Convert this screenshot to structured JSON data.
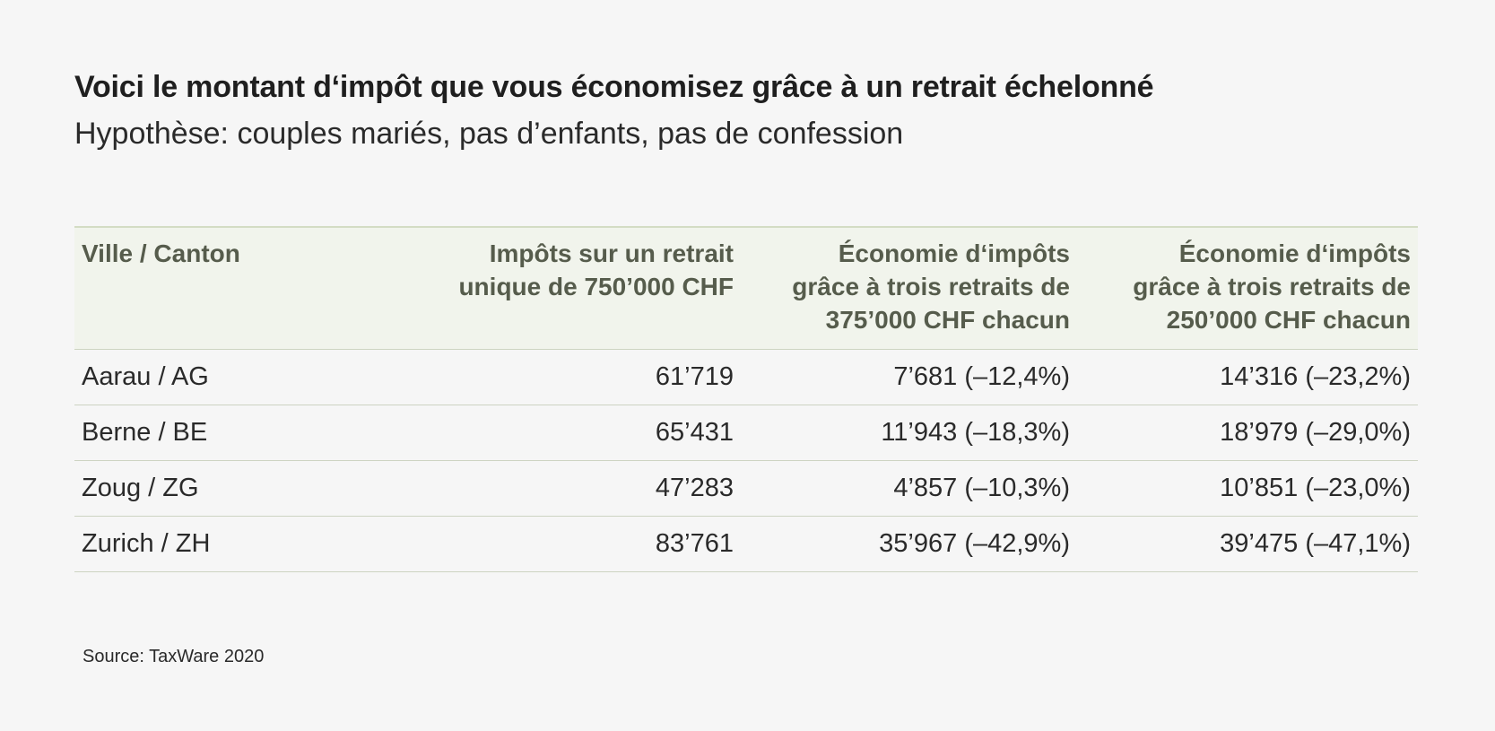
{
  "title": "Voici le montant d‘impôt que vous économisez grâce à un retrait échelonné",
  "subtitle": "Hypothèse: couples mariés, pas d’enfants, pas de confession",
  "source": "Source: TaxWare 2020",
  "colors": {
    "background": "#f6f6f6",
    "header_background": "#f1f4ec",
    "header_text": "#565c4c",
    "rule": "#cdd3c2"
  },
  "chart_data": {
    "type": "table",
    "title": "Voici le montant d‘impôt que vous économisez grâce à un retrait échelonné",
    "subtitle": "Hypothèse: couples mariés, pas d’enfants, pas de confession",
    "columns": [
      {
        "lines": [
          "Ville / Canton"
        ]
      },
      {
        "lines": [
          "Impôts sur un retrait",
          "unique de 750’000 CHF"
        ]
      },
      {
        "lines": [
          "Économie d‘impôts",
          "grâce à trois retraits de",
          "375’000 CHF chacun"
        ]
      },
      {
        "lines": [
          "Économie d‘impôts",
          "grâce à trois retraits de",
          "250’000 CHF chacun"
        ]
      }
    ],
    "rows": [
      {
        "cells": [
          "Aarau / AG",
          "61’719",
          "7’681 (–12,4%)",
          "14’316 (–23,2%)"
        ],
        "values": {
          "tax_single": 61719,
          "saving_375k": 7681,
          "saving_375k_pct": -12.4,
          "saving_250k": 14316,
          "saving_250k_pct": -23.2
        }
      },
      {
        "cells": [
          "Berne / BE",
          "65’431",
          "11’943 (–18,3%)",
          "18’979 (–29,0%)"
        ],
        "values": {
          "tax_single": 65431,
          "saving_375k": 11943,
          "saving_375k_pct": -18.3,
          "saving_250k": 18979,
          "saving_250k_pct": -29.0
        }
      },
      {
        "cells": [
          "Zoug / ZG",
          "47’283",
          "4’857 (–10,3%)",
          "10’851 (–23,0%)"
        ],
        "values": {
          "tax_single": 47283,
          "saving_375k": 4857,
          "saving_375k_pct": -10.3,
          "saving_250k": 10851,
          "saving_250k_pct": -23.0
        }
      },
      {
        "cells": [
          "Zurich / ZH",
          "83’761",
          "35’967 (–42,9%)",
          "39’475 (–47,1%)"
        ],
        "values": {
          "tax_single": 83761,
          "saving_375k": 35967,
          "saving_375k_pct": -42.9,
          "saving_250k": 39475,
          "saving_250k_pct": -47.1
        }
      }
    ]
  }
}
